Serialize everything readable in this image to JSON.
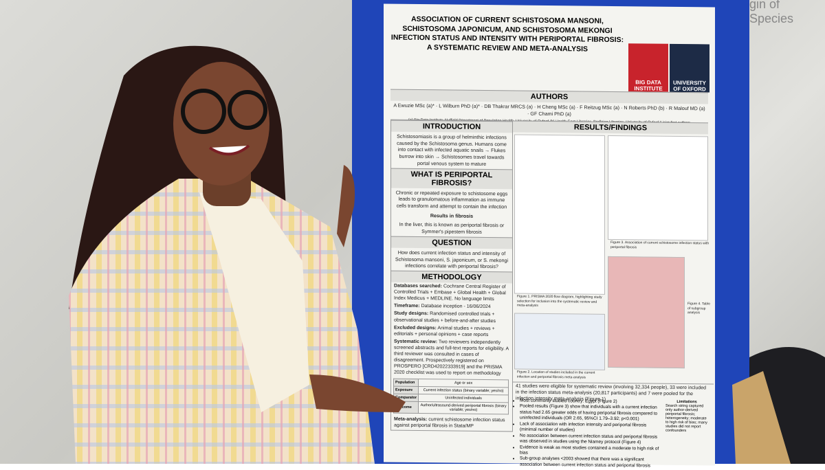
{
  "wall_sign": "gin of Species",
  "poster": {
    "title": "ASSOCIATION OF CURRENT SCHISTOSOMA MANSONI, SCHISTOSOMA JAPONICUM, AND SCHISTOSOMA MEKONGI INFECTION STATUS AND INTENSITY WITH PERIPORTAL FIBROSIS: A SYSTEMATIC REVIEW AND META-ANALYSIS",
    "logos": [
      "BIG DATA INSTITUTE",
      "UNIVERSITY OF OXFORD"
    ],
    "authors_heading": "AUTHORS",
    "authors": "A Ewuzie MSc (a)* · L Wilburn PhD (a)* · DB Thakrar MRCS (a) · H Cheng MSc (a) · F Reitzug MSc (a) · N Roberts PhD (b) · R Malouf MD (a) · GF Chami PhD (a)",
    "affiliations": "(a) Big Data Institute, Nuffield Department of Population Health, University of Oxford   (b) Health Care Libraries, Bodleian Libraries, University of Oxford   * joint first authors",
    "introduction": {
      "heading": "INTRODUCTION",
      "text": "Schistosomiasis is a group of helminthic infections caused by the Schistosoma genus. Humans come into contact with infected aquatic snails → Flukes burrow into skin → Schistosomes travel towards portal venous system to mature"
    },
    "periportal": {
      "heading": "WHAT IS PERIPORTAL FIBROSIS?",
      "text": "Chronic or repeated exposure to schistosome eggs leads to granulomatous inflammation as immune cells transform and attempt to contain the infection",
      "bold": "Results in fibrosis",
      "text2": "In the liver, this is known as periportal fibrosis or Symmer's pipestem fibrosis"
    },
    "question": {
      "heading": "QUESTION",
      "text": "How does current infection status and intensity of Schistosoma mansoni, S. japonicum, or S. mekongi infections correlate with periportal fibrosis?"
    },
    "methodology": {
      "heading": "METHODOLOGY",
      "items": [
        {
          "label": "Databases searched:",
          "text": "Cochrane Central Register of Controlled Trials + Embase + Global Health + Global Index Medicus + MEDLINE. No language limits"
        },
        {
          "label": "Timeframe:",
          "text": "Database inception - 16/06/2024"
        },
        {
          "label": "Study designs:",
          "text": "Randomised controlled trials + observational studies + before-and-after studies"
        },
        {
          "label": "Excluded designs:",
          "text": "Animal studies + reviews + editorials + personal opinions + case reports"
        },
        {
          "label": "Systematic review:",
          "text": "Two reviewers independently screened abstracts and full-text reports for eligibility. A third reviewer was consulted in cases of disagreement. Prospectively registered on PROSPERO [CRD42022333919] and the PRISMA 2020 checklist was used to report on methodology"
        }
      ],
      "pico": [
        [
          "Population",
          "Age or sex"
        ],
        [
          "Exposure",
          "Current infection status (binary variable; yes/no)"
        ],
        [
          "Comparator",
          "Uninfected individuals"
        ],
        [
          "Outcome",
          "Author/ultrasound-derived periportal fibrosis (binary variable; yes/no)"
        ]
      ],
      "meta": {
        "label": "Meta-analysis:",
        "text": "current schistosome infection status against periportal fibrosis in Stata/MP"
      }
    },
    "results": {
      "heading": "RESULTS/FINDINGS",
      "captions": [
        "Figure 1. PRISMA 2020 flow diagram, highlighting study selection for inclusion into the systematic review and meta-analysis",
        "Figure 2. Location of studies included in the current infection and periportal fibrosis meta-analysis",
        "Figure 3. Association of current schistosome infection status with periportal fibrosis",
        "Figure 4. Table of subgroup analysis"
      ],
      "summary": "41 studies were eligible for systematic review (involving 32,334 people), 33 were included in the infection status meta-analysis (20,817 participants) and 7 were pooled for the infection intensity meta-analysis (Figure 1)",
      "bullets": [
        "Most commonly studied country: Egypt (Figure 2)",
        "Pooled results (Figure 3) show that individuals with a current infection status had 2.65 greater odds of having periportal fibrosis compared to uninfected individuals (OR 2.65, 95%CI 1.79–3.92; p<0.001)",
        "Lack of association with infection intensity and periportal fibrosis (minimal number of studies)",
        "No association between current infection status and periportal fibrosis was observed in studies using the Niamey protocol (Figure 4)",
        "Evidence is weak as most studies contained a moderate to high risk of bias",
        "Sub-group analyses <2003 showed that there was a significant association between current infection status and periportal fibrosis"
      ],
      "limitations_heading": "Limitations",
      "limitations": "Search string captured only author-derived periportal fibrosis; heterogeneity; moderate to high risk of bias; many studies did not report confounders"
    }
  }
}
